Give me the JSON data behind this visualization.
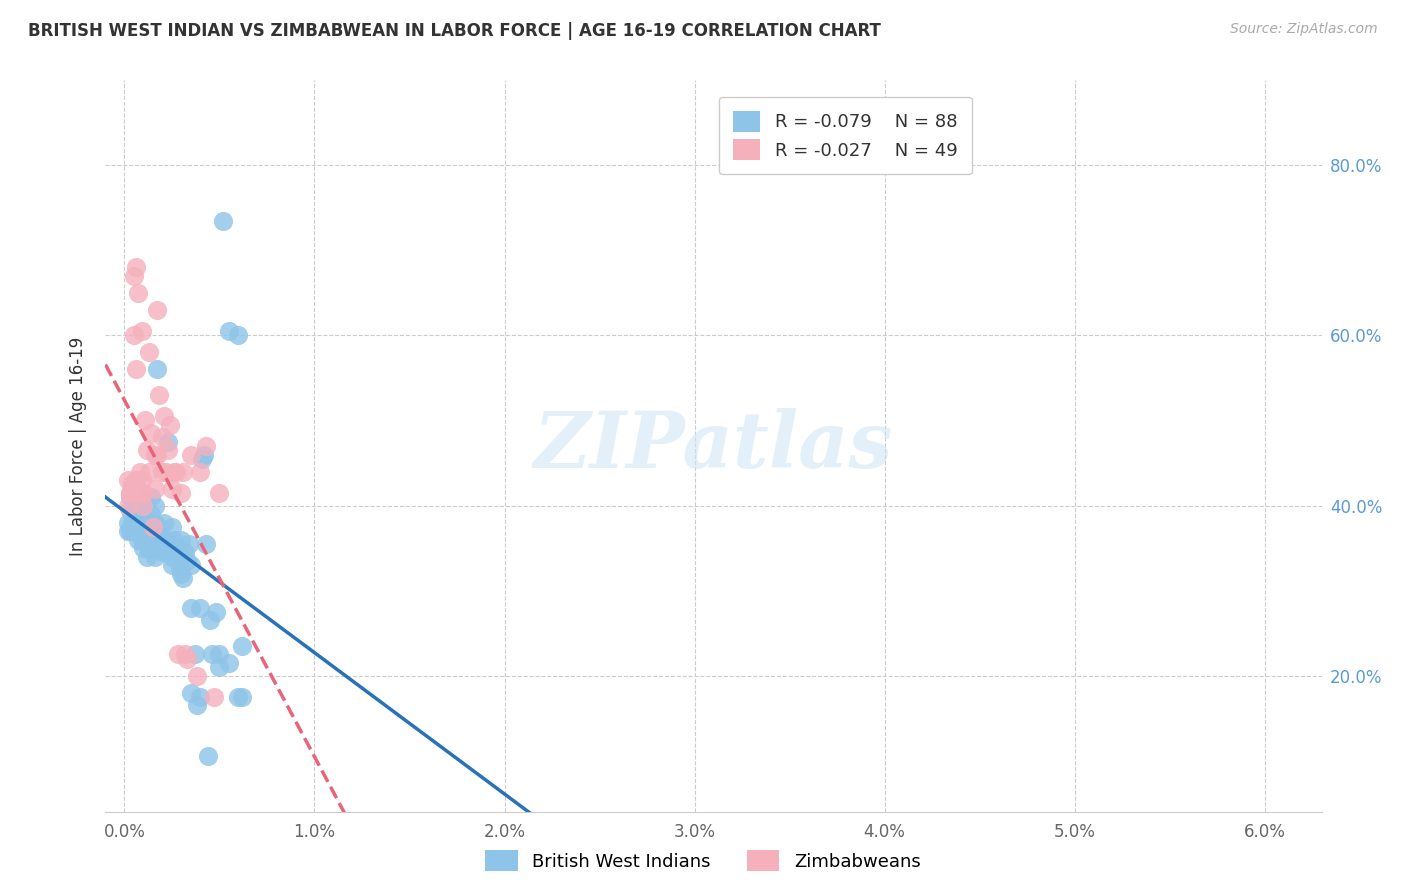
{
  "title": "BRITISH WEST INDIAN VS ZIMBABWEAN IN LABOR FORCE | AGE 16-19 CORRELATION CHART",
  "source": "Source: ZipAtlas.com",
  "ylabel": "In Labor Force | Age 16-19",
  "x_ticks": [
    0.0,
    0.01,
    0.02,
    0.03,
    0.04,
    0.05,
    0.06
  ],
  "x_tick_labels": [
    "0.0%",
    "1.0%",
    "2.0%",
    "3.0%",
    "4.0%",
    "5.0%",
    "6.0%"
  ],
  "y_ticks_right": [
    0.2,
    0.4,
    0.6,
    0.8
  ],
  "y_tick_labels_right": [
    "20.0%",
    "40.0%",
    "60.0%",
    "80.0%"
  ],
  "y_lim": [
    0.04,
    0.9
  ],
  "x_lim": [
    -0.001,
    0.063
  ],
  "blue_scatter_color": "#8ec4e8",
  "pink_scatter_color": "#f5b0bc",
  "blue_line_color": "#2772b8",
  "pink_line_color": "#e8647a",
  "legend_R_blue": "R = -0.079",
  "legend_N_blue": "N = 88",
  "legend_R_pink": "R = -0.027",
  "legend_N_pink": "N = 49",
  "watermark": "ZIPatlas",
  "blue_x": [
    0.0002,
    0.0003,
    0.0003,
    0.0004,
    0.0004,
    0.0005,
    0.0005,
    0.0005,
    0.0006,
    0.0006,
    0.0007,
    0.0007,
    0.0008,
    0.0008,
    0.0009,
    0.001,
    0.001,
    0.001,
    0.0011,
    0.0011,
    0.0012,
    0.0012,
    0.0013,
    0.0013,
    0.0014,
    0.0014,
    0.0015,
    0.0015,
    0.0016,
    0.0016,
    0.0017,
    0.0017,
    0.0018,
    0.0018,
    0.0019,
    0.002,
    0.002,
    0.0021,
    0.0022,
    0.0022,
    0.0023,
    0.0024,
    0.0025,
    0.0025,
    0.0026,
    0.0027,
    0.0028,
    0.0029,
    0.003,
    0.003,
    0.0031,
    0.0032,
    0.0033,
    0.0034,
    0.0035,
    0.0035,
    0.0037,
    0.0038,
    0.004,
    0.0041,
    0.0042,
    0.0043,
    0.0044,
    0.0046,
    0.0048,
    0.005,
    0.0052,
    0.0055,
    0.006,
    0.0062,
    0.0002,
    0.0003,
    0.0004,
    0.0005,
    0.0007,
    0.0009,
    0.0012,
    0.0016,
    0.002,
    0.0025,
    0.003,
    0.0035,
    0.004,
    0.0045,
    0.005,
    0.0055,
    0.006,
    0.0062
  ],
  "blue_y": [
    0.38,
    0.395,
    0.41,
    0.37,
    0.39,
    0.385,
    0.4,
    0.425,
    0.38,
    0.4,
    0.36,
    0.41,
    0.375,
    0.395,
    0.365,
    0.38,
    0.35,
    0.41,
    0.375,
    0.395,
    0.38,
    0.34,
    0.375,
    0.35,
    0.39,
    0.41,
    0.355,
    0.375,
    0.38,
    0.4,
    0.56,
    0.35,
    0.375,
    0.355,
    0.36,
    0.345,
    0.355,
    0.38,
    0.36,
    0.345,
    0.475,
    0.355,
    0.34,
    0.375,
    0.36,
    0.35,
    0.35,
    0.325,
    0.36,
    0.34,
    0.315,
    0.345,
    0.335,
    0.355,
    0.18,
    0.33,
    0.225,
    0.165,
    0.175,
    0.455,
    0.46,
    0.355,
    0.105,
    0.225,
    0.275,
    0.21,
    0.735,
    0.605,
    0.6,
    0.235,
    0.37,
    0.37,
    0.38,
    0.37,
    0.38,
    0.36,
    0.36,
    0.34,
    0.36,
    0.33,
    0.32,
    0.28,
    0.28,
    0.265,
    0.225,
    0.215,
    0.175,
    0.175
  ],
  "pink_x": [
    0.0002,
    0.0002,
    0.0003,
    0.0003,
    0.0004,
    0.0004,
    0.0005,
    0.0005,
    0.0006,
    0.0006,
    0.0006,
    0.0007,
    0.0008,
    0.0009,
    0.001,
    0.001,
    0.001,
    0.0011,
    0.0012,
    0.0013,
    0.0014,
    0.0015,
    0.0016,
    0.0016,
    0.0017,
    0.0018,
    0.002,
    0.002,
    0.0021,
    0.0022,
    0.0023,
    0.0024,
    0.0025,
    0.0026,
    0.0027,
    0.0028,
    0.003,
    0.0031,
    0.0032,
    0.0033,
    0.0035,
    0.0038,
    0.004,
    0.0043,
    0.0047,
    0.005,
    0.0017,
    0.0013,
    0.0009
  ],
  "pink_y": [
    0.43,
    0.4,
    0.415,
    0.415,
    0.42,
    0.425,
    0.67,
    0.6,
    0.68,
    0.43,
    0.56,
    0.65,
    0.44,
    0.43,
    0.415,
    0.4,
    0.415,
    0.5,
    0.465,
    0.44,
    0.485,
    0.375,
    0.46,
    0.42,
    0.46,
    0.53,
    0.44,
    0.48,
    0.505,
    0.44,
    0.465,
    0.495,
    0.42,
    0.44,
    0.44,
    0.225,
    0.415,
    0.44,
    0.225,
    0.22,
    0.46,
    0.2,
    0.44,
    0.47,
    0.175,
    0.415,
    0.63,
    0.58,
    0.605
  ]
}
